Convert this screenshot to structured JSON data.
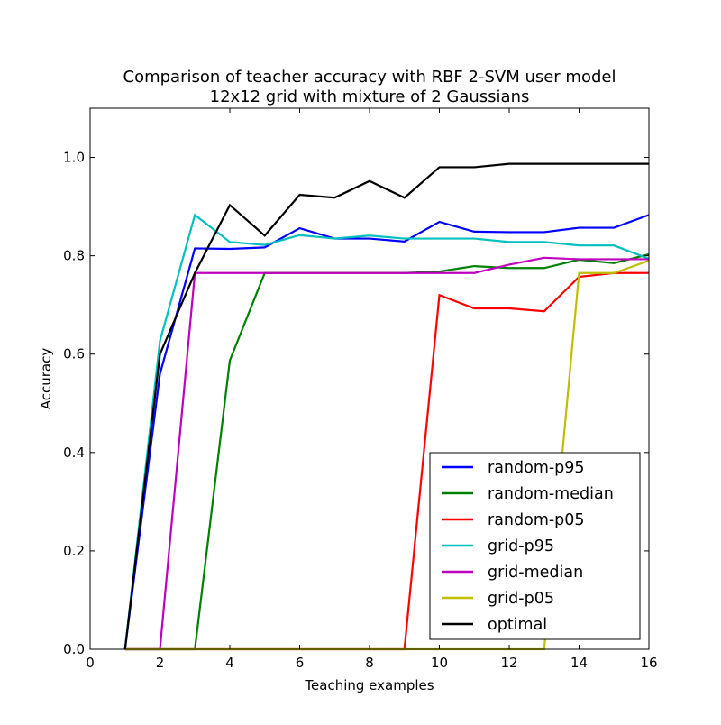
{
  "chart_data": {
    "type": "line",
    "title": "Comparison of teacher accuracy with RBF 2-SVM user model",
    "subtitle": "12x12 grid with mixture of 2 Gaussians",
    "xlabel": "Teaching examples",
    "ylabel": "Accuracy",
    "xlim": [
      0,
      16
    ],
    "ylim": [
      0,
      1.1
    ],
    "xticks": [
      0,
      2,
      4,
      6,
      8,
      10,
      12,
      14,
      16
    ],
    "yticks": [
      0.0,
      0.2,
      0.4,
      0.6,
      0.8,
      1.0
    ],
    "xtick_labels": [
      "0",
      "2",
      "4",
      "6",
      "8",
      "10",
      "12",
      "14",
      "16"
    ],
    "ytick_labels": [
      "0.0",
      "0.2",
      "0.4",
      "0.6",
      "0.8",
      "1.0"
    ],
    "grid": false,
    "legend_position": "lower-right",
    "x": [
      1,
      2,
      3,
      4,
      5,
      6,
      7,
      8,
      9,
      10,
      11,
      12,
      13,
      14,
      15,
      16
    ],
    "series": [
      {
        "name": "random-p95",
        "color": "#0000ff",
        "values": [
          0.0,
          0.56,
          0.815,
          0.814,
          0.817,
          0.856,
          0.835,
          0.835,
          0.829,
          0.869,
          0.849,
          0.848,
          0.848,
          0.857,
          0.857,
          0.883
        ]
      },
      {
        "name": "random-median",
        "color": "#008000",
        "values": [
          0.0,
          0.0,
          0.0,
          0.587,
          0.765,
          0.765,
          0.765,
          0.765,
          0.765,
          0.768,
          0.779,
          0.775,
          0.775,
          0.792,
          0.785,
          0.803
        ]
      },
      {
        "name": "random-p05",
        "color": "#ff0000",
        "values": [
          0.0,
          0.0,
          0.0,
          0.0,
          0.0,
          0.0,
          0.0,
          0.0,
          0.0,
          0.72,
          0.693,
          0.693,
          0.687,
          0.757,
          0.765,
          0.765
        ]
      },
      {
        "name": "grid-p95",
        "color": "#00bfbf",
        "values": [
          0.0,
          0.627,
          0.883,
          0.828,
          0.822,
          0.842,
          0.835,
          0.841,
          0.835,
          0.835,
          0.835,
          0.828,
          0.828,
          0.821,
          0.821,
          0.794
        ]
      },
      {
        "name": "grid-median",
        "color": "#bf00bf",
        "values": [
          0.0,
          0.0,
          0.765,
          0.765,
          0.765,
          0.765,
          0.765,
          0.765,
          0.765,
          0.765,
          0.765,
          0.782,
          0.796,
          0.793,
          0.793,
          0.793
        ]
      },
      {
        "name": "grid-p05",
        "color": "#bfbf00",
        "values": [
          0.0,
          0.0,
          0.0,
          0.0,
          0.0,
          0.0,
          0.0,
          0.0,
          0.0,
          0.0,
          0.0,
          0.0,
          0.0,
          0.765,
          0.765,
          0.79
        ]
      },
      {
        "name": "optimal",
        "color": "#000000",
        "values": [
          0.0,
          0.6,
          0.765,
          0.903,
          0.841,
          0.924,
          0.918,
          0.952,
          0.918,
          0.98,
          0.98,
          0.987,
          0.987,
          0.987,
          0.987,
          0.987
        ]
      }
    ]
  }
}
